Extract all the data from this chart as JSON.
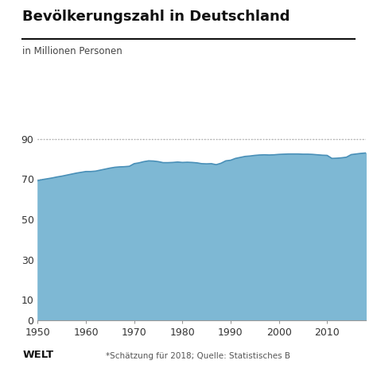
{
  "title": "Bevölkerungszahl in Deutschland",
  "subtitle": "in Millionen Personen",
  "footer_left": "WELT",
  "footer_right": "*Schätzung für 2018; Quelle: Statistisches B",
  "area_color": "#7eb8d4",
  "line_color": "#4a90b8",
  "background_color": "#ffffff",
  "ylim": [
    0,
    95
  ],
  "yticks": [
    0,
    10,
    30,
    50,
    70,
    90
  ],
  "dotted_line_y": 90,
  "years": [
    1950,
    1951,
    1952,
    1953,
    1954,
    1955,
    1956,
    1957,
    1958,
    1959,
    1960,
    1961,
    1962,
    1963,
    1964,
    1965,
    1966,
    1967,
    1968,
    1969,
    1970,
    1971,
    1972,
    1973,
    1974,
    1975,
    1976,
    1977,
    1978,
    1979,
    1980,
    1981,
    1982,
    1983,
    1984,
    1985,
    1986,
    1987,
    1988,
    1989,
    1990,
    1991,
    1992,
    1993,
    1994,
    1995,
    1996,
    1997,
    1998,
    1999,
    2000,
    2001,
    2002,
    2003,
    2004,
    2005,
    2006,
    2007,
    2008,
    2009,
    2010,
    2011,
    2012,
    2013,
    2014,
    2015,
    2016,
    2017,
    2018
  ],
  "population": [
    69.3,
    69.8,
    70.2,
    70.6,
    71.1,
    71.5,
    72.0,
    72.5,
    73.0,
    73.4,
    73.8,
    73.8,
    74.0,
    74.5,
    75.0,
    75.5,
    75.9,
    76.1,
    76.2,
    76.4,
    77.7,
    78.1,
    78.7,
    79.1,
    79.0,
    78.7,
    78.2,
    78.2,
    78.3,
    78.5,
    78.3,
    78.4,
    78.3,
    78.1,
    77.7,
    77.6,
    77.7,
    77.2,
    77.9,
    79.1,
    79.4,
    80.3,
    80.8,
    81.3,
    81.5,
    81.8,
    82.0,
    82.1,
    82.0,
    82.1,
    82.3,
    82.4,
    82.5,
    82.5,
    82.5,
    82.4,
    82.4,
    82.3,
    82.1,
    81.9,
    81.8,
    80.3,
    80.4,
    80.6,
    80.9,
    82.2,
    82.5,
    82.8,
    83.0
  ],
  "xticks": [
    1950,
    1960,
    1970,
    1980,
    1990,
    2000,
    2010
  ],
  "xlim": [
    1950,
    2018
  ]
}
